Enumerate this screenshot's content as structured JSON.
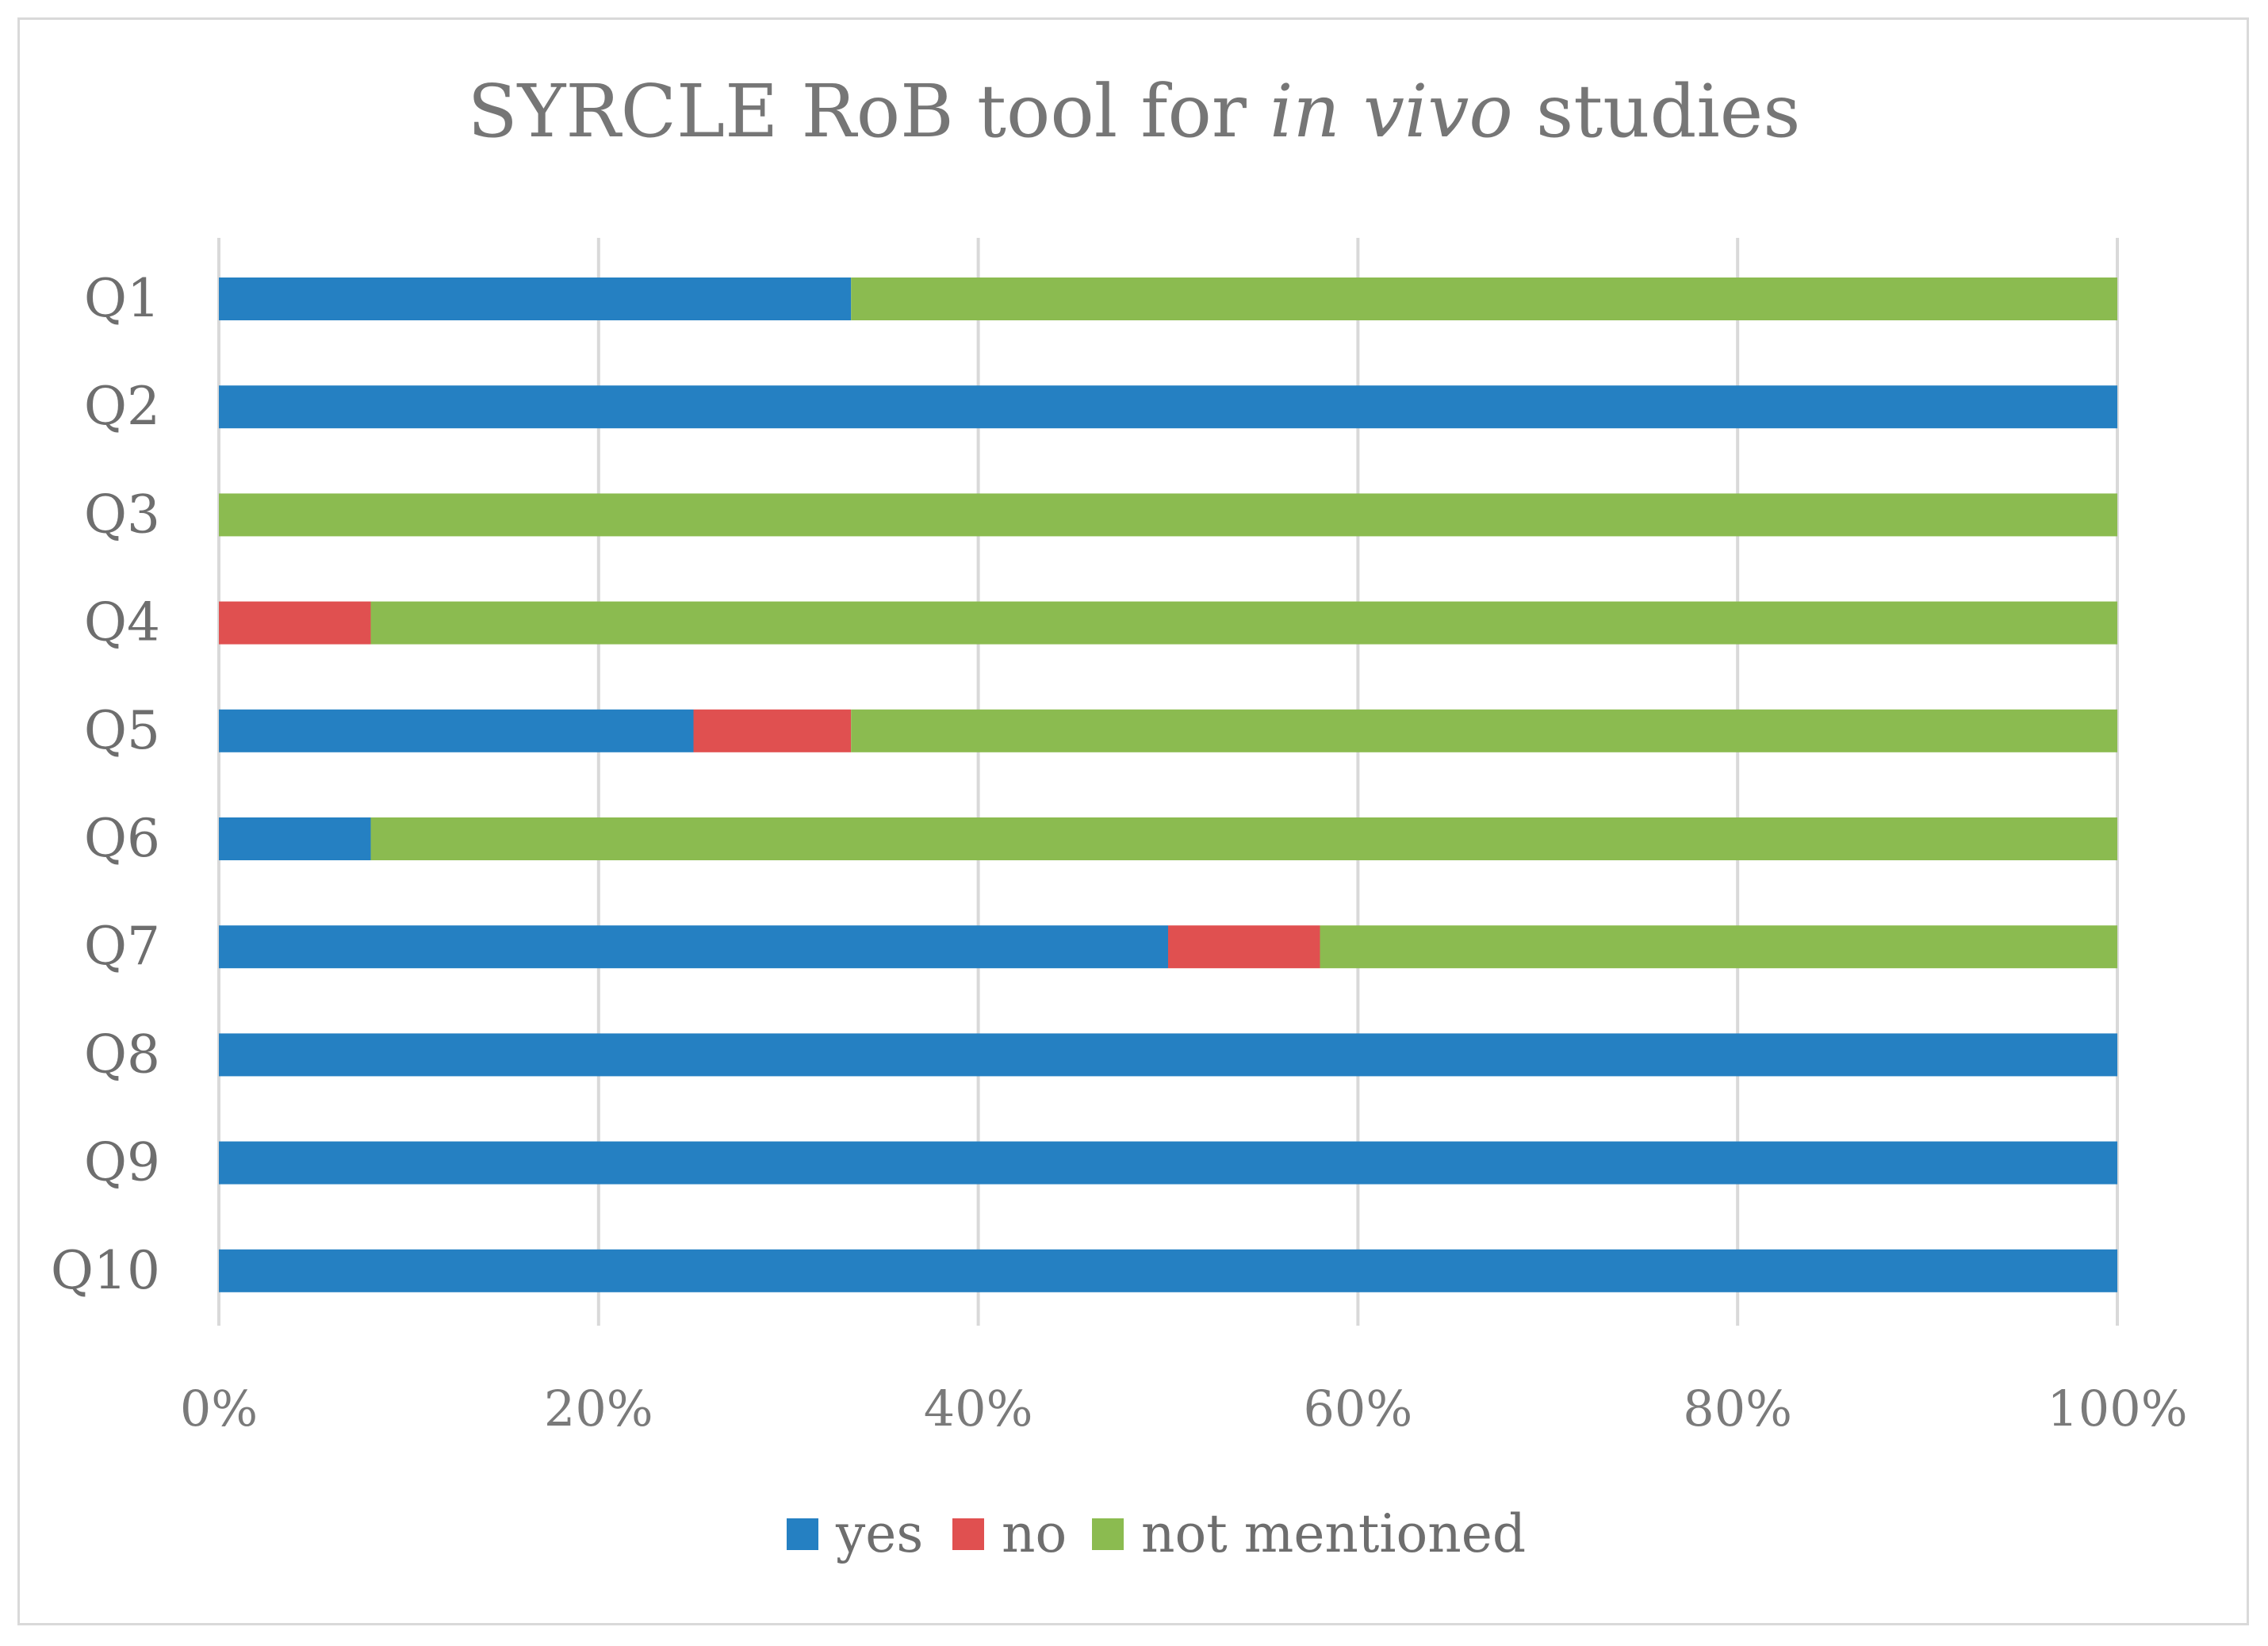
{
  "chart_data": {
    "type": "bar",
    "orientation": "horizontal",
    "stacked": "percent",
    "title": {
      "prefix": "SYRCLE RoB tool for ",
      "italic": "in vivo",
      "suffix": " studies"
    },
    "categories": [
      "Q1",
      "Q2",
      "Q3",
      "Q4",
      "Q5",
      "Q6",
      "Q7",
      "Q8",
      "Q9",
      "Q10"
    ],
    "series": [
      {
        "name": "yes",
        "color": "#2580C2",
        "values": [
          33.3,
          100,
          0,
          0,
          25,
          8,
          50,
          100,
          100,
          100
        ]
      },
      {
        "name": "no",
        "color": "#E05050",
        "values": [
          0,
          0,
          0,
          8,
          8.3,
          0,
          8,
          0,
          0,
          0
        ]
      },
      {
        "name": "not mentioned",
        "color": "#8BBB50",
        "values": [
          66.7,
          0,
          100,
          92,
          66.7,
          92,
          42,
          0,
          0,
          0
        ]
      }
    ],
    "x_ticks": [
      "0%",
      "20%",
      "40%",
      "60%",
      "80%",
      "100%"
    ],
    "xlim": [
      0,
      100
    ],
    "grid": "vertical",
    "legend": "bottom"
  }
}
